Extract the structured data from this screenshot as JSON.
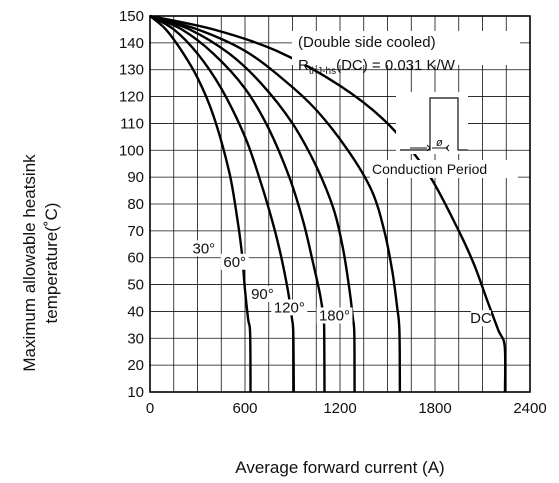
{
  "chart_data": {
    "type": "line",
    "title": "",
    "xlabel": "Average forward current (A)",
    "ylabel_lines": [
      "Maximum allowable heatsink",
      "temperature(˚C)"
    ],
    "xlim": [
      0,
      2400
    ],
    "ylim": [
      10,
      150
    ],
    "x_ticks": [
      0,
      600,
      1200,
      1800,
      2400
    ],
    "x_tick_labels": [
      "0",
      "600",
      "1200",
      "1800",
      "2400"
    ],
    "y_ticks": [
      10,
      20,
      30,
      40,
      50,
      60,
      70,
      80,
      90,
      100,
      110,
      120,
      130,
      140,
      150
    ],
    "y_tick_labels": [
      "10",
      "20",
      "30",
      "40",
      "50",
      "60",
      "70",
      "80",
      "90",
      "100",
      "110",
      "120",
      "130",
      "140",
      "150"
    ],
    "grid": true,
    "annotations": {
      "cooling": "(Double side cooled)",
      "rth_main": "R",
      "rth_sub": "thJ-hs",
      "rth_rest": "(DC) = 0.031 K/W",
      "phi": "ø",
      "conduction": "Conduction Period"
    },
    "series": [
      {
        "name": "30°",
        "label_at": [
          340,
          62
        ],
        "points": [
          [
            0,
            150
          ],
          [
            100,
            145
          ],
          [
            200,
            137
          ],
          [
            300,
            127
          ],
          [
            400,
            113
          ],
          [
            500,
            92
          ],
          [
            550,
            75
          ],
          [
            580,
            62
          ],
          [
            600,
            48
          ],
          [
            620,
            37
          ],
          [
            632,
            32
          ],
          [
            635,
            10
          ]
        ]
      },
      {
        "name": "60°",
        "label_at": [
          535,
          57
        ],
        "points": [
          [
            0,
            150
          ],
          [
            150,
            145
          ],
          [
            300,
            136
          ],
          [
            450,
            123
          ],
          [
            600,
            105
          ],
          [
            700,
            88
          ],
          [
            780,
            72
          ],
          [
            830,
            60
          ],
          [
            870,
            48
          ],
          [
            895,
            38
          ],
          [
            905,
            32
          ],
          [
            908,
            10
          ]
        ]
      },
      {
        "name": "90°",
        "label_at": [
          710,
          45
        ],
        "points": [
          [
            0,
            150
          ],
          [
            200,
            145
          ],
          [
            400,
            136
          ],
          [
            600,
            123
          ],
          [
            750,
            108
          ],
          [
            880,
            90
          ],
          [
            970,
            73
          ],
          [
            1030,
            58
          ],
          [
            1075,
            46
          ],
          [
            1095,
            38
          ],
          [
            1100,
            33
          ],
          [
            1102,
            10
          ]
        ]
      },
      {
        "name": "120°",
        "label_at": [
          880,
          40
        ],
        "points": [
          [
            0,
            150
          ],
          [
            250,
            145
          ],
          [
            500,
            136
          ],
          [
            700,
            125
          ],
          [
            900,
            110
          ],
          [
            1050,
            94
          ],
          [
            1160,
            78
          ],
          [
            1220,
            63
          ],
          [
            1260,
            48
          ],
          [
            1280,
            38
          ],
          [
            1290,
            32
          ],
          [
            1292,
            10
          ]
        ]
      },
      {
        "name": "180°",
        "label_at": [
          1165,
          37
        ],
        "points": [
          [
            0,
            150
          ],
          [
            300,
            145
          ],
          [
            600,
            137
          ],
          [
            850,
            126
          ],
          [
            1050,
            115
          ],
          [
            1250,
            100
          ],
          [
            1400,
            85
          ],
          [
            1480,
            70
          ],
          [
            1530,
            55
          ],
          [
            1560,
            42
          ],
          [
            1575,
            33
          ],
          [
            1578,
            10
          ]
        ]
      },
      {
        "name": "DC",
        "label_at": [
          2090,
          36
        ],
        "points": [
          [
            0,
            150
          ],
          [
            400,
            145
          ],
          [
            800,
            137
          ],
          [
            1200,
            124
          ],
          [
            1500,
            110
          ],
          [
            1750,
            92
          ],
          [
            1950,
            70
          ],
          [
            2050,
            57
          ],
          [
            2130,
            44
          ],
          [
            2200,
            33
          ],
          [
            2240,
            27
          ],
          [
            2242,
            10
          ]
        ]
      }
    ]
  }
}
